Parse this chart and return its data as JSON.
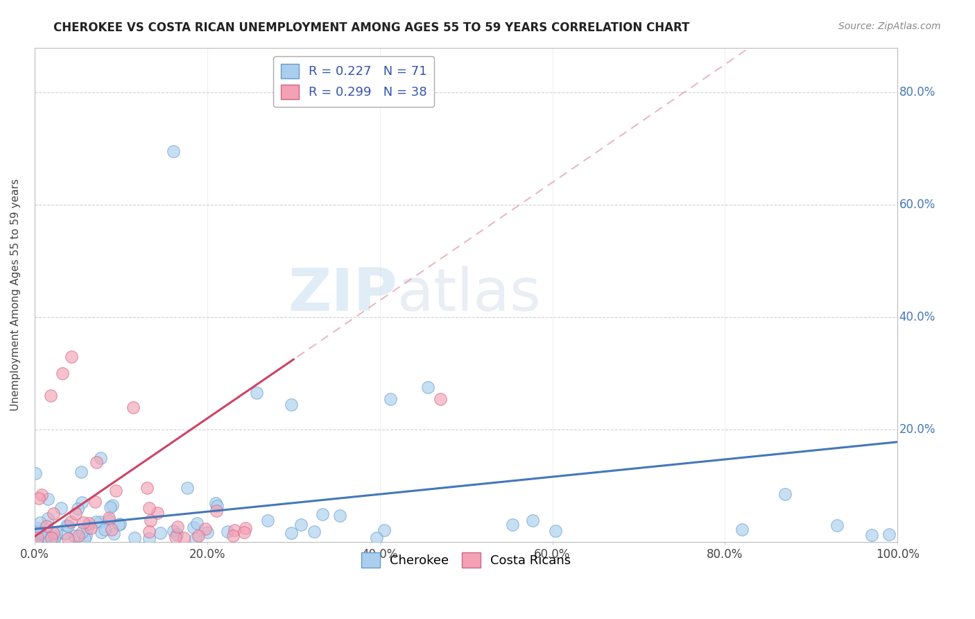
{
  "title": "CHEROKEE VS COSTA RICAN UNEMPLOYMENT AMONG AGES 55 TO 59 YEARS CORRELATION CHART",
  "source": "Source: ZipAtlas.com",
  "ylabel": "Unemployment Among Ages 55 to 59 years",
  "xlim": [
    0,
    1.0
  ],
  "ylim": [
    0,
    0.88
  ],
  "cherokee_color": "#aacfee",
  "cherokee_edge": "#6699cc",
  "costarican_color": "#f4a0b5",
  "costarican_edge": "#cc6680",
  "trendline_cherokee_color": "#4477bb",
  "trendline_costarican_color": "#cc4466",
  "trendline_cr_dash_color": "#e09aaa",
  "legend_R_cherokee": "0.227",
  "legend_N_cherokee": "71",
  "legend_R_costarican": "0.299",
  "legend_N_costarican": "38",
  "watermark_zip": "ZIP",
  "watermark_atlas": "atlas",
  "background_color": "#ffffff",
  "grid_color": "#cccccc",
  "right_label_color": "#4477bb"
}
